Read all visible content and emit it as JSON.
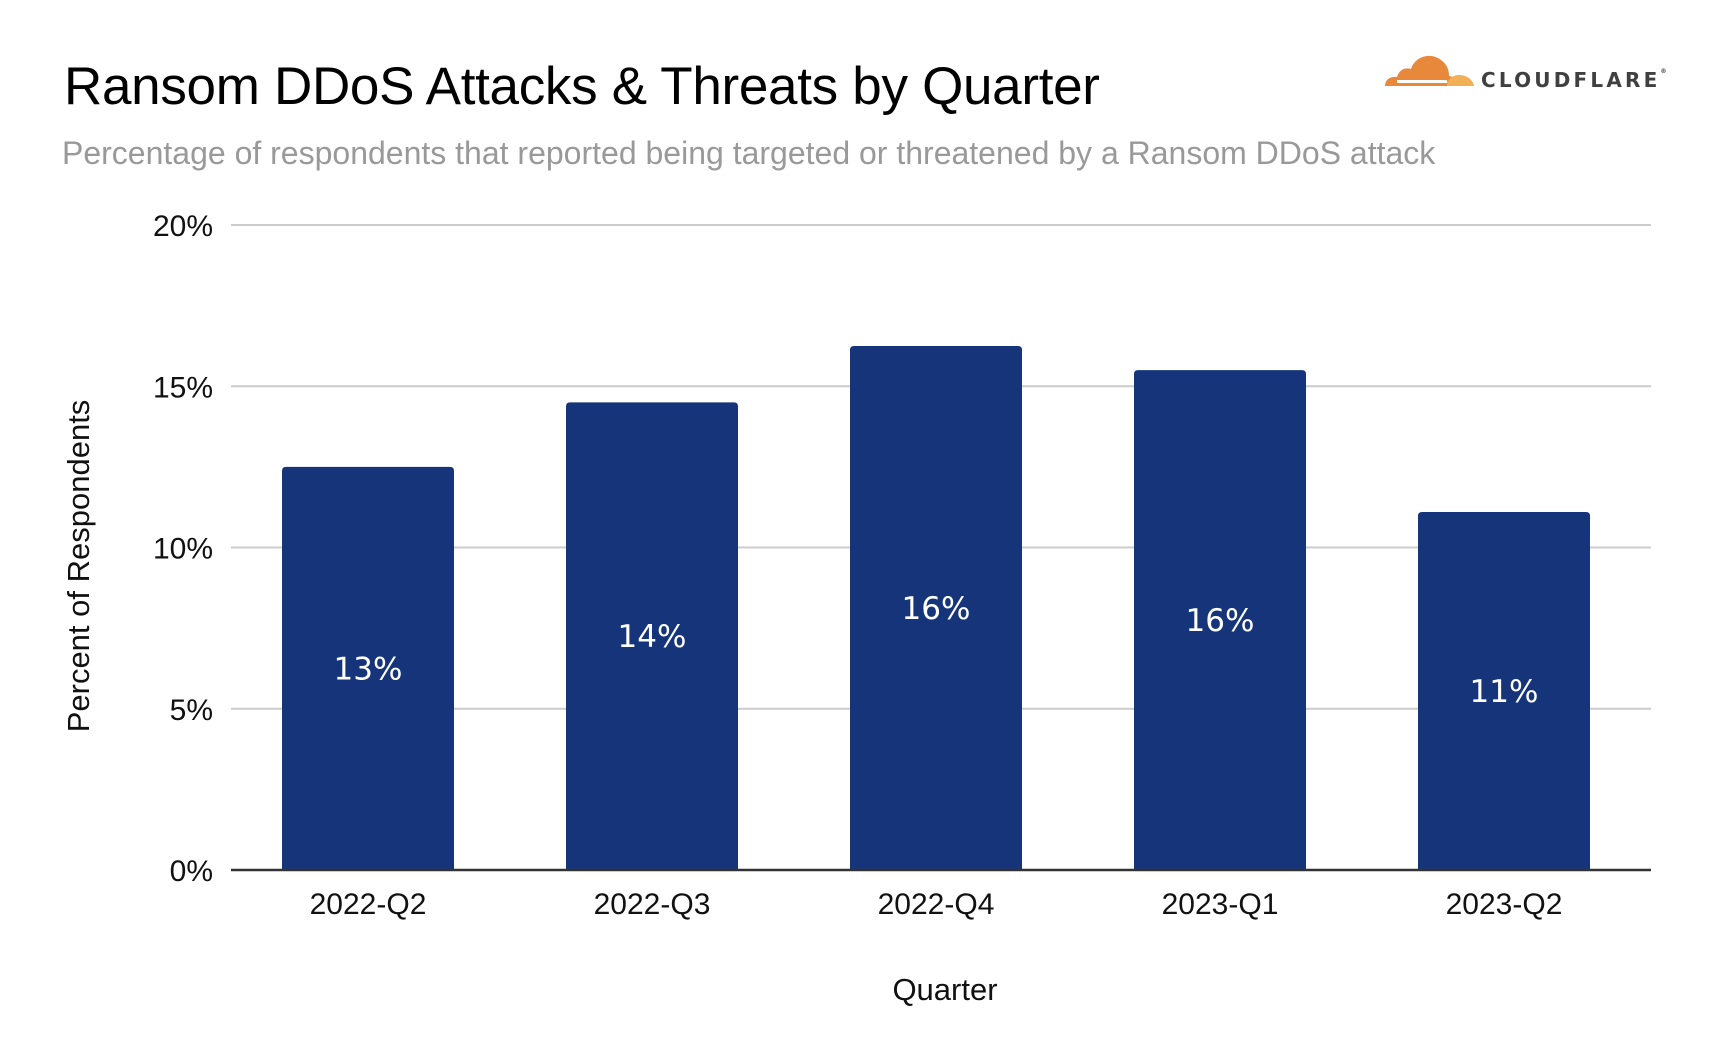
{
  "logo": {
    "brand": "CLOUDFLARE",
    "registered_mark": "®",
    "icon": "cloudflare-cloud-icon",
    "colors": {
      "cloud_main": "#f38020",
      "cloud_light": "#faae40",
      "text": "#404041"
    }
  },
  "chart_data": {
    "type": "bar",
    "title": "Ransom DDoS Attacks & Threats by Quarter",
    "subtitle": "Percentage of respondents that reported being targeted or threatened by a Ransom DDoS attack",
    "xlabel": "Quarter",
    "ylabel": "Percent of Respondents",
    "categories": [
      "2022-Q2",
      "2022-Q3",
      "2022-Q4",
      "2023-Q1",
      "2023-Q2"
    ],
    "values": [
      12.5,
      14.5,
      16.25,
      15.5,
      11.1
    ],
    "data_labels": [
      "13%",
      "14%",
      "16%",
      "16%",
      "11%"
    ],
    "ylim": [
      0,
      20
    ],
    "yticks": [
      0,
      5,
      10,
      15,
      20
    ],
    "ytick_labels": [
      "0%",
      "5%",
      "10%",
      "15%",
      "20%"
    ],
    "grid": true,
    "legend": "none",
    "colors": {
      "bar": "#15347a",
      "grid": "#cccccc",
      "axis": "#333333",
      "data_label": "#ffffff"
    }
  }
}
